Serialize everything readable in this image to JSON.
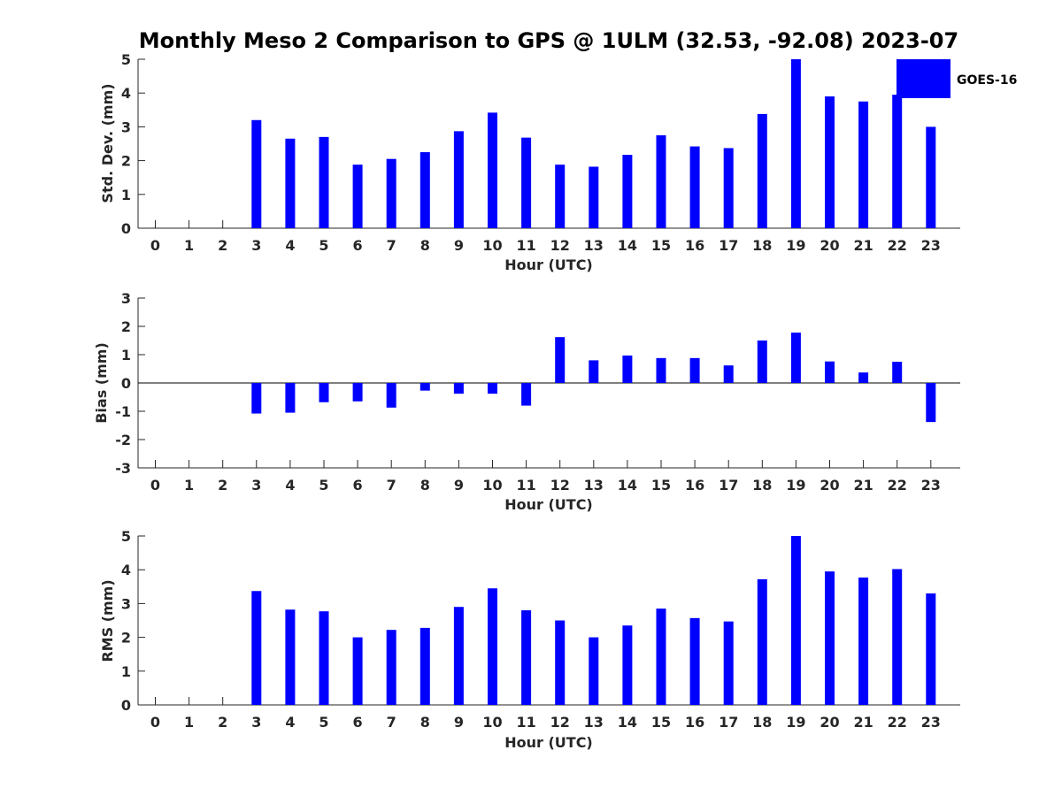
{
  "chart_data": {
    "title": "Monthly Meso 2 Comparison to GPS @ 1ULM (32.53, -92.08) 2023-07",
    "type": "bar",
    "series_color": "#0000ff",
    "legend": {
      "label": "GOES-16",
      "position": "top-right"
    },
    "panels": [
      {
        "name": "std-dev",
        "ylabel": "Std. Dev. (mm)",
        "xlabel": "Hour (UTC)",
        "ylim": [
          0,
          5
        ],
        "yticks": [
          0,
          1,
          2,
          3,
          4,
          5
        ],
        "categories": [
          "0",
          "1",
          "2",
          "3",
          "4",
          "5",
          "6",
          "7",
          "8",
          "9",
          "10",
          "11",
          "12",
          "13",
          "14",
          "15",
          "16",
          "17",
          "18",
          "19",
          "20",
          "21",
          "22",
          "23"
        ],
        "values": [
          null,
          null,
          null,
          3.2,
          2.65,
          2.7,
          1.88,
          2.05,
          2.25,
          2.87,
          3.42,
          2.68,
          1.88,
          1.82,
          2.17,
          2.75,
          2.42,
          2.37,
          3.38,
          5.0,
          3.9,
          3.75,
          3.95,
          3.0
        ]
      },
      {
        "name": "bias",
        "ylabel": "Bias (mm)",
        "xlabel": "Hour (UTC)",
        "ylim": [
          -3,
          3
        ],
        "yticks": [
          -3,
          -2,
          -1,
          0,
          1,
          2,
          3
        ],
        "zero_line": true,
        "categories": [
          "0",
          "1",
          "2",
          "3",
          "4",
          "5",
          "6",
          "7",
          "8",
          "9",
          "10",
          "11",
          "12",
          "13",
          "14",
          "15",
          "16",
          "17",
          "18",
          "19",
          "20",
          "21",
          "22",
          "23"
        ],
        "values": [
          null,
          null,
          null,
          -1.08,
          -1.05,
          -0.68,
          -0.65,
          -0.87,
          -0.27,
          -0.38,
          -0.38,
          -0.8,
          1.62,
          0.8,
          0.97,
          0.88,
          0.88,
          0.62,
          1.5,
          1.78,
          0.76,
          0.37,
          0.75,
          -1.38
        ]
      },
      {
        "name": "rms",
        "ylabel": "RMS (mm)",
        "xlabel": "Hour (UTC)",
        "ylim": [
          0,
          5
        ],
        "yticks": [
          0,
          1,
          2,
          3,
          4,
          5
        ],
        "categories": [
          "0",
          "1",
          "2",
          "3",
          "4",
          "5",
          "6",
          "7",
          "8",
          "9",
          "10",
          "11",
          "12",
          "13",
          "14",
          "15",
          "16",
          "17",
          "18",
          "19",
          "20",
          "21",
          "22",
          "23"
        ],
        "values": [
          null,
          null,
          null,
          3.37,
          2.82,
          2.77,
          2.0,
          2.22,
          2.28,
          2.9,
          3.45,
          2.8,
          2.5,
          2.0,
          2.35,
          2.85,
          2.57,
          2.47,
          3.72,
          5.0,
          3.95,
          3.77,
          4.02,
          3.3
        ]
      }
    ]
  }
}
